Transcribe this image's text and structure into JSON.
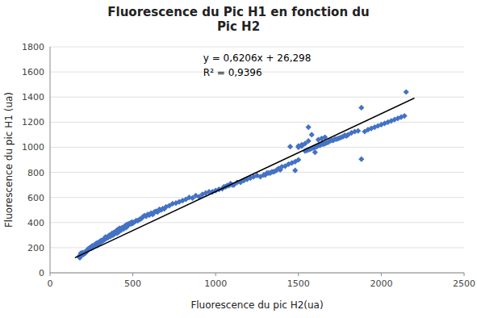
{
  "chart_data": {
    "type": "scatter",
    "title": "Fluorescence du Pic H1 en fonction du\nPic H2",
    "x_label": "Fluorescence du pic H2(ua)",
    "y_label": "Fluorescence du pic H1 (ua)",
    "annotations": [
      "y = 0,6206x + 26,298",
      "R² = 0,9396"
    ],
    "xlim": [
      0,
      2500
    ],
    "ylim": [
      0,
      1800
    ],
    "xticks": [
      0,
      500,
      1000,
      1500,
      2000,
      2500
    ],
    "yticks": [
      0,
      200,
      400,
      600,
      800,
      1000,
      1200,
      1400,
      1600,
      1800
    ],
    "grid": "y",
    "series": [
      {
        "type": "scatter",
        "color": "#4472C4",
        "marker": "diamond",
        "x": [
          175,
          180,
          185,
          190,
          195,
          200,
          205,
          210,
          215,
          220,
          225,
          230,
          235,
          240,
          245,
          250,
          255,
          260,
          265,
          270,
          275,
          280,
          285,
          290,
          295,
          300,
          305,
          310,
          315,
          320,
          325,
          330,
          335,
          340,
          345,
          350,
          355,
          360,
          365,
          370,
          375,
          380,
          385,
          390,
          395,
          400,
          405,
          410,
          415,
          420,
          425,
          430,
          435,
          440,
          445,
          450,
          455,
          460,
          465,
          470,
          475,
          480,
          485,
          490,
          495,
          500,
          510,
          520,
          530,
          540,
          550,
          560,
          570,
          580,
          590,
          600,
          610,
          620,
          630,
          640,
          650,
          660,
          670,
          680,
          690,
          700,
          720,
          740,
          760,
          780,
          800,
          820,
          840,
          860,
          880,
          900,
          920,
          940,
          960,
          980,
          1000,
          1020,
          1040,
          1060,
          1080,
          1100,
          1050,
          1070,
          1090,
          1110,
          1130,
          1150,
          1170,
          1190,
          1210,
          1230,
          1250,
          1270,
          1290,
          1310,
          1330,
          1350,
          1370,
          1390,
          1300,
          1320,
          1340,
          1360,
          1380,
          1400,
          1420,
          1440,
          1460,
          1480,
          1500,
          1450,
          1480,
          1500,
          1520,
          1540,
          1560,
          1560,
          1580,
          1600,
          1620,
          1640,
          1660,
          1500,
          1520,
          1550,
          1570,
          1590,
          1610,
          1630,
          1650,
          1670,
          1690,
          1710,
          1730,
          1750,
          1770,
          1790,
          1540,
          1560,
          1580,
          1600,
          1620,
          1640,
          1660,
          1680,
          1700,
          1720,
          1740,
          1760,
          1780,
          1800,
          1820,
          1840,
          1860,
          1880,
          1880,
          1900,
          1920,
          1940,
          1960,
          1980,
          2000,
          2020,
          2040,
          2060,
          2080,
          2100,
          2120,
          2140,
          2150
        ],
        "values": [
          130,
          120,
          155,
          140,
          160,
          145,
          150,
          165,
          160,
          175,
          175,
          190,
          190,
          200,
          200,
          195,
          215,
          205,
          215,
          225,
          220,
          235,
          220,
          240,
          230,
          240,
          255,
          255,
          250,
          260,
          270,
          265,
          285,
          275,
          280,
          280,
          295,
          300,
          290,
          305,
          315,
          300,
          320,
          310,
          325,
          335,
          315,
          345,
          325,
          355,
          345,
          340,
          360,
          360,
          350,
          370,
          375,
          360,
          385,
          375,
          390,
          390,
          395,
          390,
          405,
          395,
          405,
          415,
          415,
          425,
          430,
          445,
          455,
          450,
          465,
          460,
          475,
          465,
          485,
          490,
          485,
          505,
          500,
          510,
          510,
          525,
          535,
          550,
          555,
          565,
          575,
          585,
          600,
          595,
          615,
          605,
          625,
          635,
          645,
          645,
          655,
          665,
          670,
          685,
          695,
          700,
          685,
          695,
          710,
          700,
          720,
          720,
          735,
          745,
          755,
          765,
          775,
          765,
          780,
          795,
          795,
          805,
          820,
          820,
          780,
          795,
          805,
          810,
          830,
          845,
          850,
          865,
          875,
          885,
          900,
          1005,
          815,
          1010,
          1010,
          1030,
          1050,
          1160,
          1100,
          960,
          1060,
          1070,
          1080,
          1000,
          1020,
          975,
          985,
          995,
          1005,
          1015,
          1025,
          1035,
          1050,
          1055,
          1065,
          1075,
          1085,
          1090,
          970,
          980,
          990,
          1000,
          1015,
          1025,
          1030,
          1040,
          1055,
          1065,
          1070,
          1080,
          1095,
          1100,
          1115,
          1125,
          1130,
          905,
          1315,
          1125,
          1140,
          1150,
          1160,
          1170,
          1180,
          1190,
          1200,
          1210,
          1220,
          1230,
          1240,
          1250,
          1440
        ]
      },
      {
        "type": "line",
        "color": "#000000",
        "x": [
          150,
          2200
        ],
        "values": [
          119.388,
          1391.618
        ]
      }
    ]
  }
}
